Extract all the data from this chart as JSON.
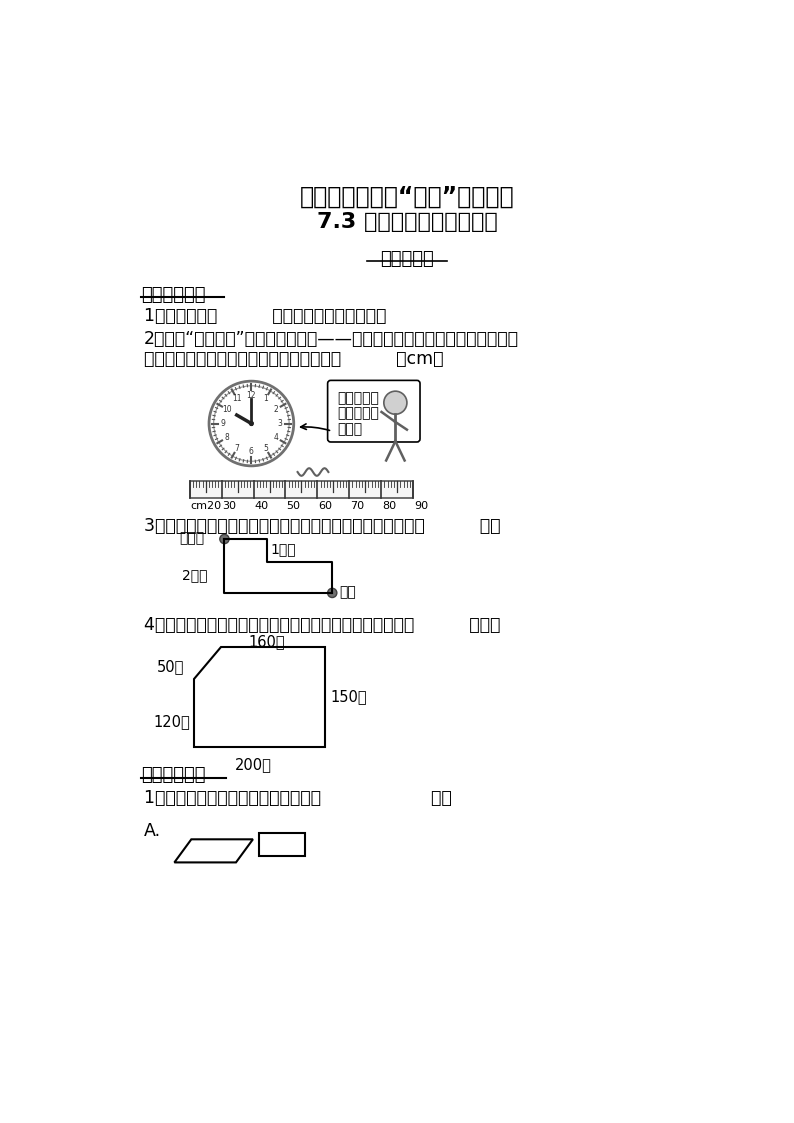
{
  "title1": "三年级数学上册“双减”作业设计",
  "title2": "7.3 周长的认识（原卷版）",
  "section_title": "基础巩固类",
  "part1_title": "一、填空题。",
  "q1": "1．封闭图形（          ）的长度，是它的周长。",
  "q2": "2．这是“唐宫夜宴”另一款文创产品——钟表，请你用铅笔描画出它的周长。",
  "q2b": "小珂用绳了测量了它的周长，它的周长是（          ）cm。",
  "speech_bubble_lines": [
    "我用这根绳",
    "子围了钟表",
    "一周。"
  ],
  "ruler_labels": [
    "cm20",
    "30",
    "40",
    "50",
    "60",
    "70",
    "80",
    "90"
  ],
  "q3": "3．小明从家到学校有两条路可以走（如下图）两条路相比（          ）。",
  "xiaoming_label": "小明家",
  "road1_label": "1号路",
  "road2_label": "2号路",
  "school_label": "学校",
  "q4": "4．下图是一个公园的示意图。杨大伯绕着公园走一圈是（          ）米。",
  "park_top": "160米",
  "park_left_top": "50米",
  "park_right": "150米",
  "park_left_bottom": "120米",
  "park_bottom": "200米",
  "part2_title": "二、选择题。",
  "q5": "1．下列图形中，周长相等的一组是（                    ）。",
  "choice_A": "A.",
  "bg_color": "#ffffff",
  "text_color": "#000000"
}
